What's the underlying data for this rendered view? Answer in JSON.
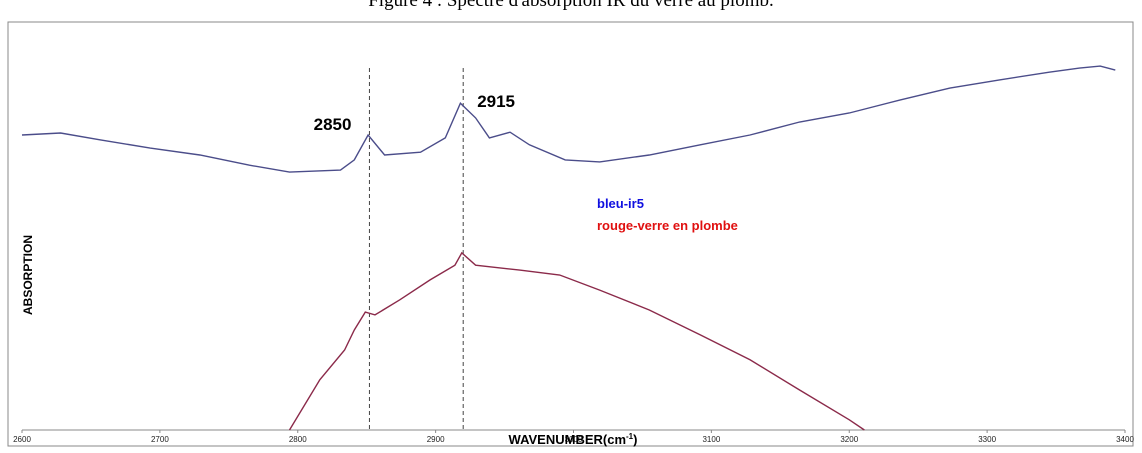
{
  "chart_data": {
    "type": "line",
    "title": "Figure 4 : Spectre d'absorption IR du verre au plomb.",
    "y_label": "ABSORPTION",
    "x_label": {
      "text": "WAVENUMBER(cm",
      "sup": "-1",
      "end": ")"
    },
    "xlim": [
      2600,
      3400
    ],
    "xticks": [
      2600,
      2700,
      2800,
      2900,
      3000,
      3100,
      3200,
      3300,
      3400
    ],
    "ylim": [
      0,
      100
    ],
    "series": [
      {
        "name": "bleu-ir5",
        "color": "#4b4d8a",
        "label_color": "#1010e0",
        "x": [
          2600,
          2628,
          2657,
          2693,
          2729,
          2765,
          2794,
          2831,
          2841,
          2851,
          2863,
          2889,
          2907,
          2918,
          2929,
          2939,
          2954,
          2968,
          2994,
          3019,
          3055,
          3092,
          3128,
          3164,
          3200,
          3237,
          3273,
          3309,
          3345,
          3367,
          3382,
          3393
        ],
        "values": [
          72.3,
          72.8,
          71.1,
          69.1,
          67.4,
          64.9,
          63.2,
          63.7,
          66.2,
          72.3,
          67.4,
          68.1,
          71.6,
          80.1,
          76.5,
          71.6,
          73.0,
          69.9,
          66.2,
          65.7,
          67.4,
          69.9,
          72.3,
          75.5,
          77.7,
          80.9,
          83.8,
          85.8,
          87.7,
          88.7,
          89.2,
          88.2
        ]
      },
      {
        "name": "rouge-verre en plombe",
        "color": "#8b2a4a",
        "label_color": "#e01010",
        "x": [
          2794,
          2816,
          2834,
          2841,
          2849,
          2856,
          2874,
          2896,
          2914,
          2919,
          2929,
          2961,
          2990,
          3019,
          3055,
          3092,
          3128,
          3164,
          3200,
          3211
        ],
        "values": [
          0,
          12.3,
          19.6,
          24.5,
          28.9,
          28.2,
          31.9,
          36.8,
          40.4,
          43.4,
          40.4,
          39.2,
          38.0,
          34.3,
          29.4,
          23.3,
          17.2,
          9.8,
          2.5,
          0
        ]
      }
    ],
    "annotations": [
      {
        "x": 2852,
        "label": "2850"
      },
      {
        "x": 2920,
        "label": "2915"
      }
    ]
  }
}
